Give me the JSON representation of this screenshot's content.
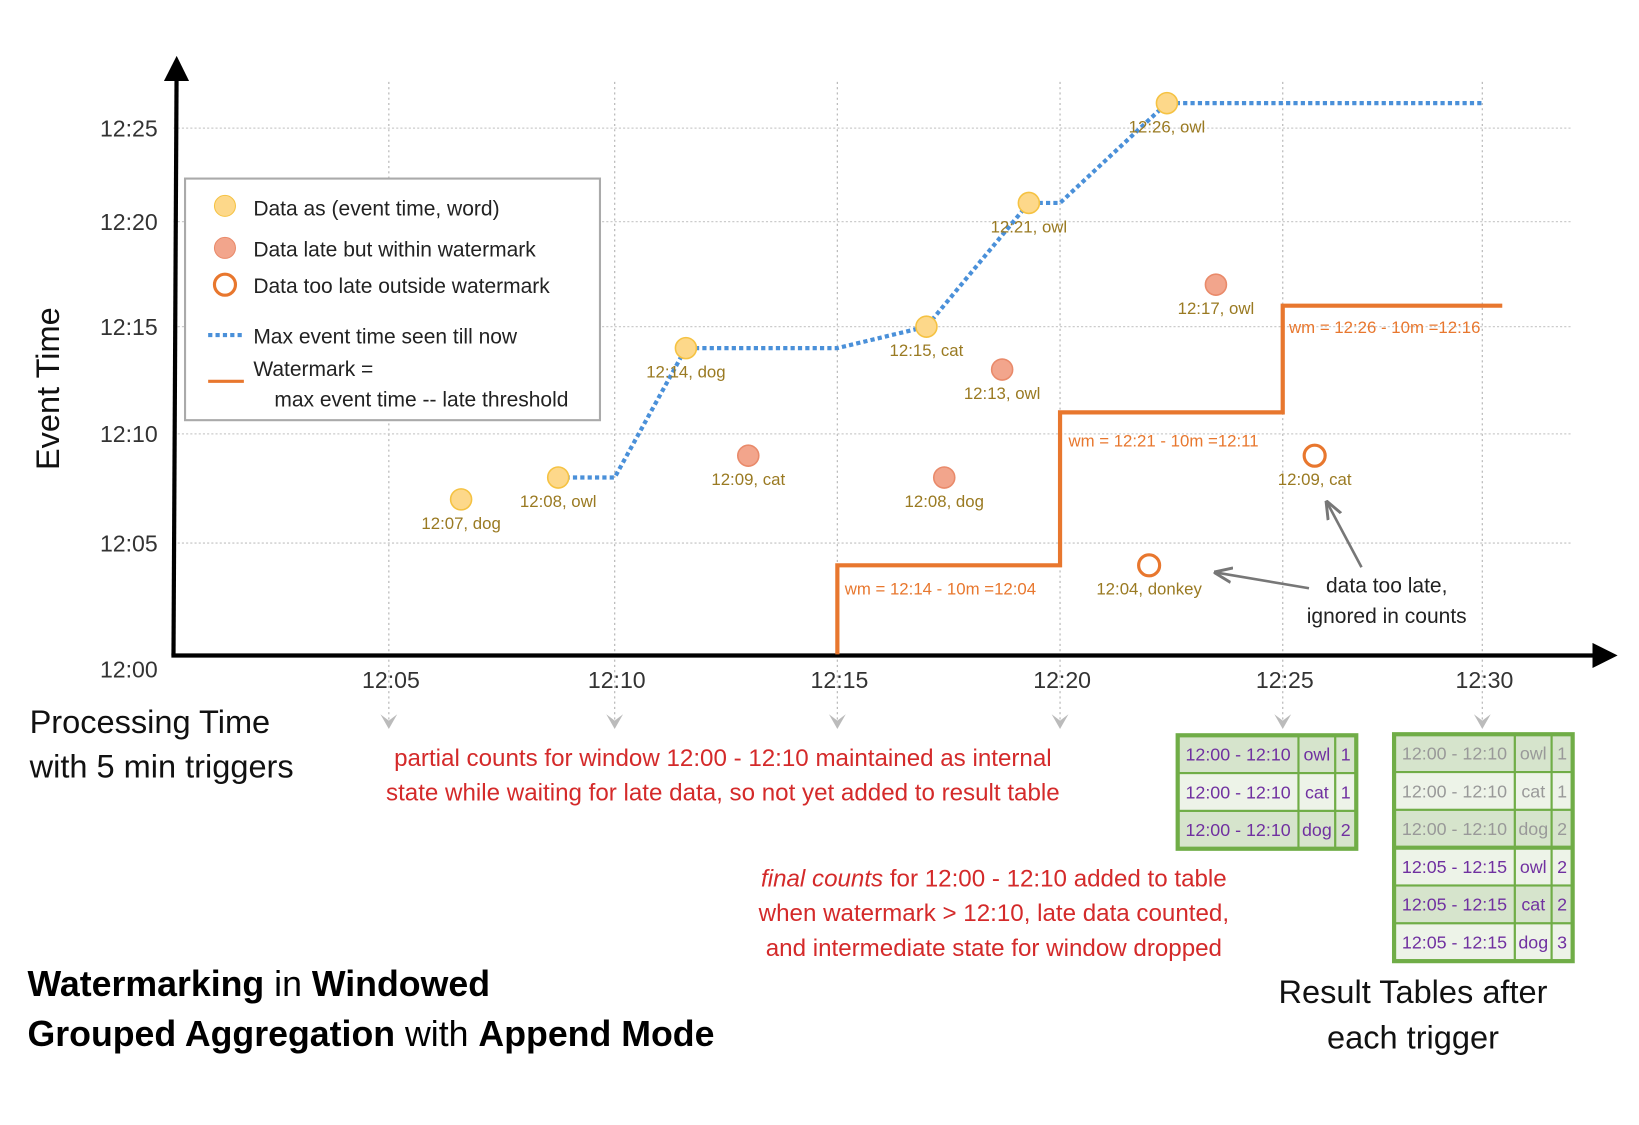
{
  "chart_data": {
    "type": "scatter",
    "title": "",
    "xlabel": [
      "Processing Time",
      "with 5 min triggers"
    ],
    "ylabel": "Event Time",
    "x_ticks": [
      "12:05",
      "12:10",
      "12:15",
      "12:20",
      "12:25",
      "12:30"
    ],
    "y_ticks": [
      "12:00",
      "12:05",
      "12:10",
      "12:15",
      "12:20",
      "12:25"
    ],
    "grid": true,
    "legend": {
      "placement": "top-left",
      "entries": [
        {
          "label": "Data as (event time, word)",
          "kind": "on-time"
        },
        {
          "label": "Data late but within watermark",
          "kind": "late"
        },
        {
          "label": "Data too late outside watermark",
          "kind": "too-late"
        },
        {
          "label": "Max event time seen till now",
          "kind": "max-line"
        },
        {
          "label": "Watermark =",
          "label2": "max event time -- late threshold",
          "kind": "watermark-line"
        }
      ]
    },
    "colors": {
      "on_time_fill": "#fdd88a",
      "on_time_stroke": "#f5c242",
      "late_fill": "#f2a58c",
      "late_stroke": "#e98a6a",
      "too_late_stroke": "#e8772e",
      "max_line": "#4a90d9",
      "watermark": "#e8772e",
      "point_label": "#9a7a22",
      "annotation": "#d42a2a",
      "table_border": "#70ad47",
      "table_text": "#7030a0",
      "table_old_text": "#999999"
    },
    "points": [
      {
        "label": "12:07, dog",
        "event": "12:07",
        "proc": "12:06:36",
        "kind": "on-time"
      },
      {
        "label": "12:08, owl",
        "event": "12:08",
        "proc": "12:08:45",
        "kind": "on-time"
      },
      {
        "label": "12:14, dog",
        "event": "12:14",
        "proc": "12:11:36",
        "kind": "on-time"
      },
      {
        "label": "12:09, cat",
        "event": "12:09",
        "proc": "12:13:00",
        "kind": "late"
      },
      {
        "label": "12:15, cat",
        "event": "12:15",
        "proc": "12:17:00",
        "kind": "on-time"
      },
      {
        "label": "12:08, dog",
        "event": "12:08",
        "proc": "12:17:24",
        "kind": "late"
      },
      {
        "label": "12:13, owl",
        "event": "12:13",
        "proc": "12:18:42",
        "kind": "late"
      },
      {
        "label": "12:21, owl",
        "event": "12:21",
        "proc": "12:19:18",
        "kind": "on-time"
      },
      {
        "label": "12:04, donkey",
        "event": "12:04",
        "proc": "12:22:00",
        "kind": "too-late"
      },
      {
        "label": "12:26, owl",
        "event": "12:26",
        "proc": "12:22:24",
        "kind": "on-time"
      },
      {
        "label": "12:17, owl",
        "event": "12:17",
        "proc": "12:23:30",
        "kind": "late"
      },
      {
        "label": "12:09, cat",
        "event": "12:09",
        "proc": "12:25:48",
        "kind": "too-late"
      }
    ],
    "max_event_line": [
      [
        "12:08:45",
        "12:08"
      ],
      [
        "12:10:00",
        "12:08"
      ],
      [
        "12:11:36",
        "12:14"
      ],
      [
        "12:15:00",
        "12:14"
      ],
      [
        "12:17:00",
        "12:15"
      ],
      [
        "12:19:18",
        "12:21"
      ],
      [
        "12:20:00",
        "12:21"
      ],
      [
        "12:22:24",
        "12:26"
      ],
      [
        "12:30:00",
        "12:26"
      ]
    ],
    "watermark_line": [
      [
        "12:15:00",
        "12:00"
      ],
      [
        "12:15:00",
        "12:04"
      ],
      [
        "12:20:00",
        "12:04"
      ],
      [
        "12:20:00",
        "12:11"
      ],
      [
        "12:25:00",
        "12:11"
      ],
      [
        "12:25:00",
        "12:16"
      ],
      [
        "12:30:30",
        "12:16"
      ]
    ],
    "watermark_labels": [
      "wm = 12:14 - 10m =12:04",
      "wm = 12:21 - 10m =12:11",
      "wm = 12:26 - 10m =12:16"
    ]
  },
  "annotations": {
    "too_late": [
      "data too late,",
      "ignored in counts"
    ],
    "partial": [
      "partial counts for window 12:00 - 12:10 maintained as internal",
      "state while waiting for late data, so not yet added  to result table"
    ],
    "final_em": "final counts",
    "final": [
      " for 12:00 - 12:10 added to table",
      "when watermark > 12:10, late data counted,",
      "and intermediate state for window dropped"
    ]
  },
  "title": {
    "line1": [
      {
        "t": "Watermarking",
        "b": true
      },
      {
        "t": " in ",
        "b": false
      },
      {
        "t": "Windowed",
        "b": true
      }
    ],
    "line2": [
      {
        "t": "Grouped Aggregation",
        "b": true
      },
      {
        "t": " with ",
        "b": false
      },
      {
        "t": "Append Mode",
        "b": true
      }
    ]
  },
  "result_tables": {
    "caption": [
      "Result Tables after",
      "each trigger"
    ],
    "after_12_25": [
      {
        "window": "12:00 - 12:10",
        "word": "owl",
        "count": "1",
        "old": false
      },
      {
        "window": "12:00 - 12:10",
        "word": "cat",
        "count": "1",
        "old": false
      },
      {
        "window": "12:00 - 12:10",
        "word": "dog",
        "count": "2",
        "old": false
      }
    ],
    "after_12_30": [
      {
        "window": "12:00 - 12:10",
        "word": "owl",
        "count": "1",
        "old": true
      },
      {
        "window": "12:00 - 12:10",
        "word": "cat",
        "count": "1",
        "old": true
      },
      {
        "window": "12:00 - 12:10",
        "word": "dog",
        "count": "2",
        "old": true
      },
      {
        "window": "12:05 - 12:15",
        "word": "owl",
        "count": "2",
        "old": false
      },
      {
        "window": "12:05 - 12:15",
        "word": "cat",
        "count": "2",
        "old": false
      },
      {
        "window": "12:05 - 12:15",
        "word": "dog",
        "count": "3",
        "old": false
      }
    ]
  }
}
